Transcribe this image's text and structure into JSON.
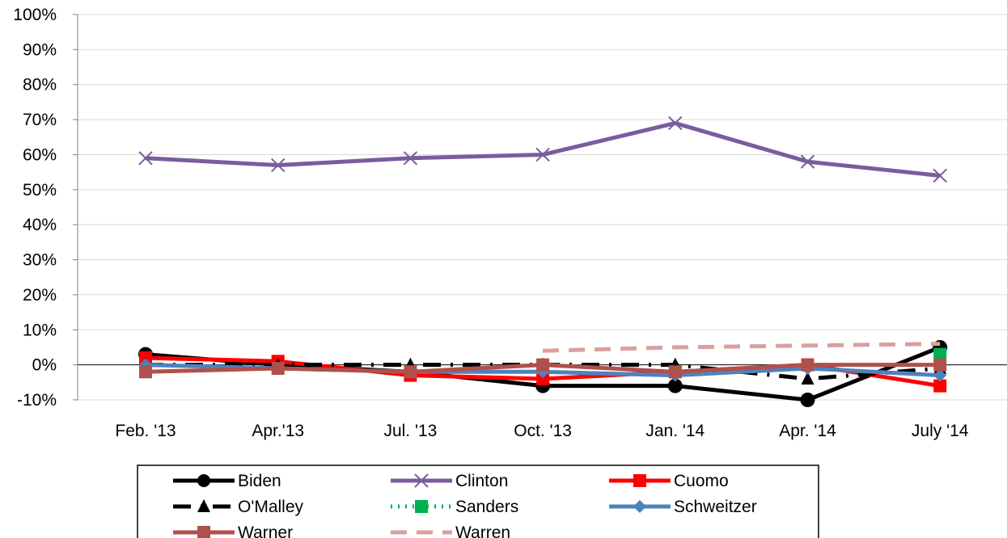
{
  "chart_data": {
    "type": "line",
    "title": "",
    "xlabel": "",
    "ylabel": "",
    "categories": [
      "Feb. '13",
      "Apr.'13",
      "Jul. '13",
      "Oct. '13",
      "Jan. '14",
      "Apr. '14",
      "July '14"
    ],
    "y_ticks": [
      "100%",
      "90%",
      "80%",
      "70%",
      "60%",
      "50%",
      "40%",
      "30%",
      "20%",
      "10%",
      "0%",
      "-10%"
    ],
    "ylim": [
      -10,
      100
    ],
    "grid": true,
    "legend_position": "bottom",
    "series": [
      {
        "name": "Biden",
        "color": "#000000",
        "dash": "solid",
        "marker": "circle",
        "values": [
          3,
          0,
          -2,
          -6,
          -6,
          -10,
          5
        ]
      },
      {
        "name": "Clinton",
        "color": "#7a5c9e",
        "dash": "solid",
        "marker": "x",
        "values": [
          59,
          57,
          59,
          60,
          69,
          58,
          54
        ]
      },
      {
        "name": "Cuomo",
        "color": "#ff0000",
        "dash": "solid",
        "marker": "square",
        "values": [
          2,
          1,
          -3,
          -4,
          -2,
          0,
          -6
        ]
      },
      {
        "name": "O'Malley",
        "color": "#000000",
        "dash": "dashdot",
        "marker": "triangle",
        "values": [
          0,
          0,
          0,
          0,
          0,
          -4,
          -1
        ]
      },
      {
        "name": "Sanders",
        "color": "#00b050",
        "dash": "dotted",
        "marker": "square",
        "values": [
          null,
          null,
          null,
          null,
          null,
          null,
          3
        ]
      },
      {
        "name": "Schweitzer",
        "color": "#4f81bd",
        "dash": "solid",
        "marker": "diamond",
        "values": [
          0,
          -1,
          -2,
          -2,
          -3,
          -1,
          -3
        ]
      },
      {
        "name": "Warner",
        "color": "#b0504c",
        "dash": "solid",
        "marker": "square",
        "values": [
          -2,
          -1,
          -2,
          0,
          -2,
          0,
          0
        ]
      },
      {
        "name": "Warren",
        "color": "#d9a09e",
        "dash": "dashed",
        "marker": "none",
        "values": [
          null,
          null,
          null,
          4,
          5,
          5.5,
          6
        ]
      }
    ]
  }
}
